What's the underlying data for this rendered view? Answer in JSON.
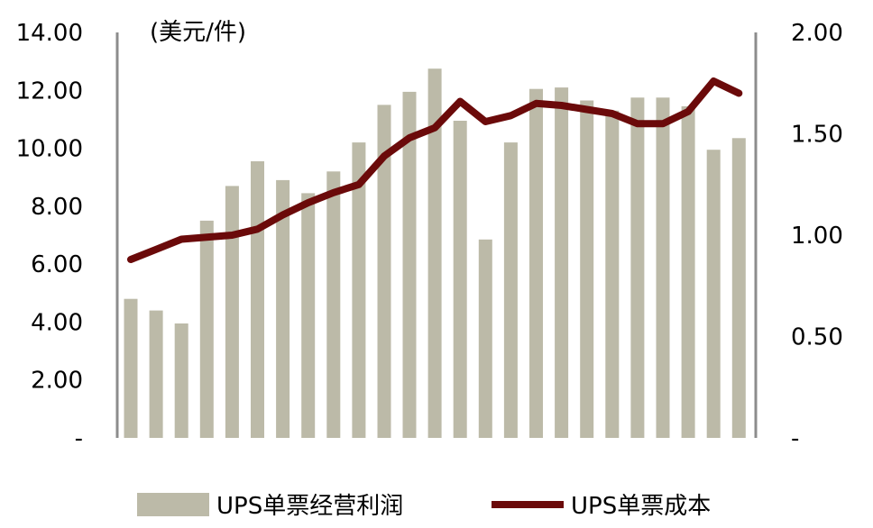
{
  "chart_data": {
    "type": "bar",
    "unit_label": "(美元/件)",
    "left_axis": {
      "ylim": [
        0,
        14
      ],
      "tick_labels": [
        "-",
        "2.00",
        "4.00",
        "6.00",
        "8.00",
        "10.00",
        "12.00",
        "14.00"
      ]
    },
    "right_axis": {
      "ylim": [
        0,
        2
      ],
      "tick_labels": [
        "-",
        "0.50",
        "1.00",
        "1.50",
        "2.00"
      ]
    },
    "grid": false,
    "legend_position": "bottom",
    "series": [
      {
        "name": "UPS单票经营利润",
        "kind": "bar",
        "axis": "left",
        "color": "#bcbaa8",
        "values": [
          4.8,
          4.4,
          3.95,
          7.5,
          8.7,
          9.55,
          8.9,
          8.45,
          9.2,
          10.2,
          11.5,
          11.95,
          12.75,
          10.95,
          6.85,
          10.2,
          12.05,
          12.1,
          11.65,
          11.3,
          11.75,
          11.75,
          11.45,
          9.95,
          10.35
        ]
      },
      {
        "name": "UPS单票成本",
        "kind": "line",
        "axis": "right",
        "color": "#6b0a0a",
        "values": [
          0.88,
          0.93,
          0.98,
          0.99,
          1.0,
          1.03,
          1.1,
          1.16,
          1.21,
          1.25,
          1.39,
          1.48,
          1.53,
          1.66,
          1.56,
          1.59,
          1.65,
          1.64,
          1.62,
          1.6,
          1.55,
          1.55,
          1.61,
          1.76,
          1.7
        ]
      }
    ]
  }
}
